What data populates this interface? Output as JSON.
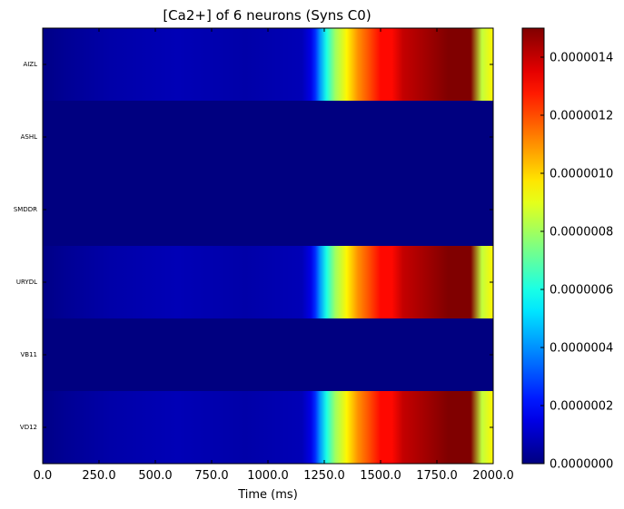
{
  "chart_data": {
    "type": "heatmap",
    "title": "[Ca2+] of 6 neurons (Syns C0)",
    "xlabel": "Time (ms)",
    "ylabel": "",
    "xlim": [
      0,
      2000
    ],
    "x_ticks": [
      "0.0",
      "250.0",
      "500.0",
      "750.0",
      "1000.0",
      "1250.0",
      "1500.0",
      "1750.0",
      "2000.0"
    ],
    "x_tick_values": [
      0,
      250,
      500,
      750,
      1000,
      1250,
      1500,
      1750,
      2000
    ],
    "rows": [
      "AIZL",
      "ASHL",
      "SMDDR",
      "URYDL",
      "VB11",
      "VD12"
    ],
    "colorbar": {
      "colormap": "jet",
      "range": [
        0,
        1.5e-06
      ],
      "ticks": [
        "0.0000000",
        "0.0000002",
        "0.0000004",
        "0.0000006",
        "0.0000008",
        "0.0000010",
        "0.0000012",
        "0.0000014"
      ],
      "tick_values": [
        0,
        2e-07,
        4e-07,
        6e-07,
        8e-07,
        1e-06,
        1.2e-06,
        1.4e-06
      ]
    },
    "series": [
      {
        "name": "AIZL",
        "time": [
          0,
          100,
          300,
          600,
          900,
          1150,
          1190,
          1210,
          1230,
          1260,
          1300,
          1350,
          1400,
          1450,
          1500,
          1550,
          1600,
          1700,
          1800,
          1900,
          1950,
          2000
        ],
        "values": [
          1e-08,
          3e-08,
          6e-08,
          8e-08,
          6e-08,
          8e-08,
          1.5e-07,
          2.5e-07,
          4e-07,
          6e-07,
          8e-07,
          9.5e-07,
          1.1e-06,
          1.2e-06,
          1.3e-06,
          1.3e-06,
          1.4e-06,
          1.45e-06,
          1.5e-06,
          1.5e-06,
          8.5e-07,
          9.5e-07
        ]
      },
      {
        "name": "ASHL",
        "time": [
          0,
          2000
        ],
        "values": [
          0,
          0
        ]
      },
      {
        "name": "SMDDR",
        "time": [
          0,
          2000
        ],
        "values": [
          0,
          0
        ]
      },
      {
        "name": "URYDL",
        "time": [
          0,
          100,
          300,
          600,
          900,
          1150,
          1190,
          1210,
          1230,
          1260,
          1300,
          1350,
          1400,
          1450,
          1500,
          1550,
          1600,
          1700,
          1800,
          1900,
          1950,
          2000
        ],
        "values": [
          1e-08,
          3e-08,
          6e-08,
          8e-08,
          6e-08,
          8e-08,
          1.5e-07,
          2.5e-07,
          4e-07,
          6e-07,
          8e-07,
          9.5e-07,
          1.1e-06,
          1.2e-06,
          1.3e-06,
          1.3e-06,
          1.4e-06,
          1.45e-06,
          1.5e-06,
          1.5e-06,
          8.5e-07,
          9.5e-07
        ]
      },
      {
        "name": "VB11",
        "time": [
          0,
          2000
        ],
        "values": [
          0,
          0
        ]
      },
      {
        "name": "VD12",
        "time": [
          0,
          100,
          300,
          600,
          900,
          1150,
          1190,
          1210,
          1230,
          1260,
          1300,
          1350,
          1400,
          1450,
          1500,
          1550,
          1600,
          1700,
          1800,
          1900,
          1950,
          2000
        ],
        "values": [
          1e-08,
          3e-08,
          6e-08,
          8e-08,
          6e-08,
          8e-08,
          1.5e-07,
          2.5e-07,
          4e-07,
          6e-07,
          8e-07,
          9.5e-07,
          1.1e-06,
          1.2e-06,
          1.3e-06,
          1.3e-06,
          1.4e-06,
          1.45e-06,
          1.5e-06,
          1.5e-06,
          8.5e-07,
          9.5e-07
        ]
      }
    ]
  }
}
